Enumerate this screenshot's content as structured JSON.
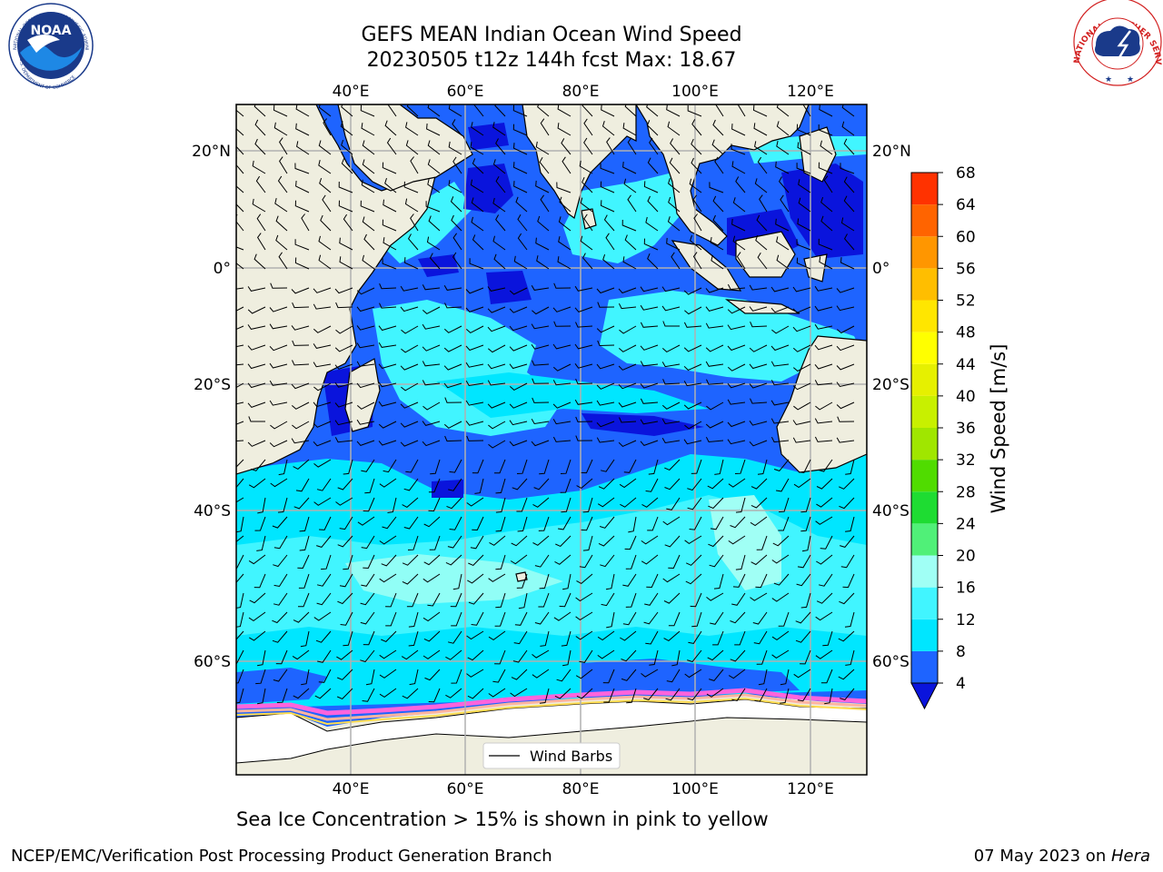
{
  "title": {
    "line1": "GEFS MEAN Indian Ocean Wind Speed",
    "line2": "20230505 t12z 144h fcst   Max: 18.67"
  },
  "map": {
    "lon_labels": [
      "40°E",
      "60°E",
      "80°E",
      "100°E",
      "120°E"
    ],
    "lat_labels": [
      "20°N",
      "0°",
      "20°S",
      "40°S",
      "60°S"
    ],
    "legend_label": "Wind Barbs",
    "colors": {
      "land": "#efeedf",
      "ice_shelf": "#ffffff",
      "wind_4_8": "#1e64ff",
      "wind_below_4": "#0a14dc",
      "wind_8_12": "#00e6ff",
      "wind_12_16": "#41f5ff",
      "wind_16_20": "#a0fff5",
      "sea_ice": [
        "#ff64dc",
        "#ffb4a0",
        "#ffdc50"
      ]
    }
  },
  "colorbar": {
    "label": "Wind Speed [m/s]",
    "ticks": [
      "4",
      "8",
      "12",
      "16",
      "20",
      "24",
      "28",
      "32",
      "36",
      "40",
      "44",
      "48",
      "52",
      "56",
      "60",
      "64",
      "68"
    ],
    "colors": [
      "#1e64ff",
      "#00e6ff",
      "#41f5ff",
      "#a0fff5",
      "#50f078",
      "#1edc32",
      "#50dc00",
      "#a0e600",
      "#c8f000",
      "#e6f000",
      "#ffff00",
      "#ffe600",
      "#ffbe00",
      "#ff9600",
      "#ff6400",
      "#ff3200"
    ],
    "extend_color": "#0a14dc"
  },
  "subtitle": "Sea Ice Concentration > 15% is shown in pink to yellow",
  "footer": {
    "left": "NCEP/EMC/Verification Post Processing Product Generation Branch",
    "right_date": "07 May 2023 on ",
    "right_machine": "Hera"
  },
  "logos": {
    "noaa_text": "NOAA",
    "noaa_ring_top": "NATIONAL OCEANIC AND ATMOSPHERIC ADMINISTRATION",
    "noaa_ring_bottom": "U.S. DEPARTMENT OF COMMERCE",
    "nws_ring": "NATIONAL WEATHER SERVICE"
  }
}
